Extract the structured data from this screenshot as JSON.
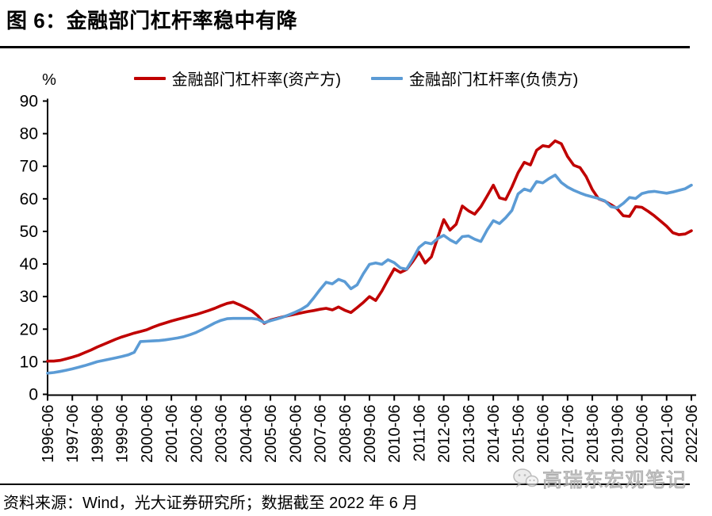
{
  "figure": {
    "title": "图 6：金融部门杠杆率稳中有降",
    "source_note": "资料来源：Wind，光大证券研究所；数据截至 2022 年 6 月",
    "watermark": "高瑞东宏观笔记"
  },
  "chart_data": {
    "type": "line",
    "title": "",
    "unit_label": "%",
    "xlabel": "",
    "ylabel": "%",
    "ylim": [
      0,
      90
    ],
    "ytick_step": 10,
    "grid": false,
    "legend_position": "top-center",
    "axis_color": "#000000",
    "x_start_year": 1996.5,
    "x_end_year": 2022.5,
    "x_step_years": 0.25,
    "x_tick_labels": [
      "1996-06",
      "1997-06",
      "1998-06",
      "1999-06",
      "2000-06",
      "2001-06",
      "2002-06",
      "2003-06",
      "2004-06",
      "2005-06",
      "2006-06",
      "2007-06",
      "2008-06",
      "2009-06",
      "2010-06",
      "2011-06",
      "2012-06",
      "2013-06",
      "2014-06",
      "2015-06",
      "2016-06",
      "2017-06",
      "2018-06",
      "2019-06",
      "2020-06",
      "2021-06",
      "2022-06"
    ],
    "series": [
      {
        "name": "金融部门杠杆率(资产方)",
        "color": "#C00000",
        "values": [
          10.2,
          10.2,
          10.4,
          10.9,
          11.4,
          12.0,
          12.8,
          13.6,
          14.5,
          15.3,
          16.1,
          16.9,
          17.6,
          18.2,
          18.8,
          19.3,
          19.8,
          20.6,
          21.3,
          21.9,
          22.5,
          23.0,
          23.5,
          24.0,
          24.5,
          25.1,
          25.7,
          26.4,
          27.2,
          27.9,
          28.3,
          27.5,
          26.6,
          25.6,
          24.0,
          21.8,
          22.8,
          23.3,
          23.8,
          24.2,
          24.6,
          25.0,
          25.4,
          25.7,
          26.1,
          26.4,
          25.9,
          26.8,
          25.8,
          25.1,
          26.6,
          28.2,
          30.0,
          28.8,
          31.7,
          35.2,
          38.5,
          37.4,
          38.3,
          40.8,
          43.6,
          40.3,
          42.2,
          48.0,
          53.6,
          50.4,
          52.2,
          57.8,
          56.3,
          55.3,
          57.6,
          60.8,
          64.2,
          60.3,
          59.8,
          63.6,
          68.0,
          71.2,
          70.4,
          74.9,
          76.3,
          76.0,
          77.8,
          76.9,
          73.0,
          70.3,
          69.6,
          66.8,
          62.8,
          60.0,
          59.3,
          58.2,
          57.0,
          54.8,
          54.6,
          57.6,
          57.4,
          56.2,
          54.8,
          53.2,
          51.6,
          49.6,
          49.0,
          49.2,
          50.2
        ]
      },
      {
        "name": "金融部门杠杆率(负债方)",
        "color": "#5B9BD5",
        "values": [
          6.5,
          6.7,
          7.0,
          7.4,
          7.8,
          8.3,
          8.8,
          9.4,
          10.0,
          10.4,
          10.8,
          11.2,
          11.6,
          12.1,
          12.9,
          16.2,
          16.3,
          16.4,
          16.5,
          16.7,
          17.0,
          17.3,
          17.7,
          18.3,
          19.0,
          19.9,
          20.9,
          21.9,
          22.7,
          23.2,
          23.3,
          23.3,
          23.3,
          23.3,
          23.0,
          22.0,
          22.6,
          23.1,
          23.7,
          24.4,
          25.2,
          26.1,
          27.3,
          29.6,
          32.1,
          34.4,
          33.9,
          35.3,
          34.6,
          32.4,
          33.6,
          37.0,
          39.9,
          40.3,
          39.9,
          41.3,
          40.4,
          38.8,
          38.4,
          41.6,
          45.1,
          46.6,
          46.2,
          47.8,
          48.8,
          47.4,
          46.4,
          48.4,
          48.6,
          47.6,
          46.9,
          50.4,
          53.3,
          52.4,
          54.2,
          56.4,
          61.5,
          63.0,
          62.4,
          65.3,
          64.9,
          66.2,
          67.3,
          65.0,
          63.6,
          62.6,
          61.8,
          61.1,
          60.6,
          60.1,
          59.4,
          57.6,
          57.2,
          58.6,
          60.4,
          60.1,
          61.6,
          62.1,
          62.3,
          62.0,
          61.7,
          62.1,
          62.6,
          63.1,
          64.2
        ]
      }
    ]
  }
}
